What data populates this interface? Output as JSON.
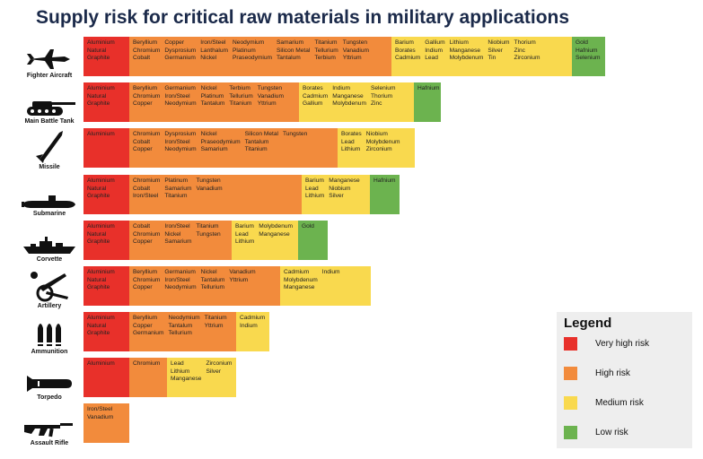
{
  "title": "Supply risk for critical raw materials in military applications",
  "legend": {
    "title": "Legend",
    "items": [
      {
        "label": "Very high risk",
        "color": "#e8302a"
      },
      {
        "label": "High risk",
        "color": "#f28b3c"
      },
      {
        "label": "Medium risk",
        "color": "#f9d94e"
      },
      {
        "label": "Low risk",
        "color": "#6cb34f"
      }
    ]
  },
  "chart_data": {
    "type": "table",
    "title": "Supply risk for critical raw materials in military applications",
    "risk_levels": [
      "Very high risk",
      "High risk",
      "Medium risk",
      "Low risk"
    ],
    "rows": [
      {
        "platform": "Fighter Aircraft",
        "icon": "fighter-jet-icon",
        "very_high": [
          "Aluminium",
          "Natural Graphite"
        ],
        "high": [
          "Beryllium",
          "Chromium",
          "Cobalt",
          "Copper",
          "Dysprosium",
          "Germanium",
          "Iron/Steel",
          "Lanthalum",
          "Nickel",
          "Neodymium",
          "Platinum",
          "Praseodymium",
          "Samarium",
          "Silicon Metal",
          "Tantalum",
          "Titanium",
          "Tellurium",
          "Terbium",
          "Tungsten",
          "Vanadium",
          "Yttrium"
        ],
        "medium": [
          "Barium",
          "Borates",
          "Cadmium",
          "Gallium",
          "Indium",
          "Lead",
          "Lithium",
          "Manganese",
          "Molybdenum",
          "Niobium",
          "Silver",
          "Tin",
          "Thorium",
          "Zinc",
          "Zirconium"
        ],
        "low": [
          "Gold",
          "Hafnium",
          "Selenium"
        ]
      },
      {
        "platform": "Main Battle Tank",
        "icon": "tank-icon",
        "very_high": [
          "Aluminium",
          "Natural Graphite"
        ],
        "high": [
          "Beryllium",
          "Chromium",
          "Copper",
          "Germanium",
          "Iron/Steel",
          "Neodymium",
          "Nickel",
          "Platinum",
          "Tantalum",
          "Terbium",
          "Tellurium",
          "Titanium",
          "Tungsten",
          "Vanadium",
          "Yttrium"
        ],
        "medium": [
          "Borates",
          "Cadmium",
          "Gallium",
          "Indium",
          "Manganese",
          "Molybdenum",
          "Selenium",
          "Thorium",
          "Zinc"
        ],
        "low": [
          "Hafnium"
        ]
      },
      {
        "platform": "Missile",
        "icon": "missile-icon",
        "very_high": [
          "Aluminium"
        ],
        "high": [
          "Chromium",
          "Cobalt",
          "Copper",
          "Dysprosium",
          "Iron/Steel",
          "Neodymium",
          "Nickel",
          "Praseodymium",
          "Samarium",
          "Silicon Metal",
          "Tantalum",
          "Titanium",
          "Tungsten"
        ],
        "medium": [
          "Borates",
          "Lead",
          "Lithium",
          "Niobium",
          "Molybdenum",
          "Zirconium"
        ],
        "low": []
      },
      {
        "platform": "Submarine",
        "icon": "submarine-icon",
        "very_high": [
          "Aluminium",
          "Natural Graphite"
        ],
        "high": [
          "Chromium",
          "Cobalt",
          "Iron/Steel",
          "Platinum",
          "Samarium",
          "Titanium",
          "Tungsten",
          "Vanadium"
        ],
        "medium": [
          "Barium",
          "Lead",
          "Lithium",
          "Manganese",
          "Niobium",
          "Silver"
        ],
        "low": [
          "Hafnium"
        ]
      },
      {
        "platform": "Corvette",
        "icon": "corvette-icon",
        "very_high": [
          "Aluminium",
          "Natural Graphite"
        ],
        "high": [
          "Cobalt",
          "Chromium",
          "Copper",
          "Iron/Steel",
          "Nickel",
          "Samarium",
          "Titanium",
          "Tungsten"
        ],
        "medium": [
          "Barium",
          "Lead",
          "Lithium",
          "Molybdenum",
          "Manganese"
        ],
        "low": [
          "Gold"
        ]
      },
      {
        "platform": "Artillery",
        "icon": "artillery-icon",
        "very_high": [
          "Aluminium",
          "Natural Graphite"
        ],
        "high": [
          "Beryllium",
          "Chromium",
          "Copper",
          "Germanium",
          "Iron/Steel",
          "Neodymium",
          "Nickel",
          "Tantalum",
          "Tellurium",
          "Vanadium",
          "Yttrium"
        ],
        "medium": [
          "Cadmium",
          "Molybdenum",
          "Manganese",
          "Indium"
        ],
        "low": []
      },
      {
        "platform": "Ammunition",
        "icon": "ammunition-icon",
        "very_high": [
          "Aluminium",
          "Natural Graphite"
        ],
        "high": [
          "Beryllium",
          "Copper",
          "Germanium",
          "Neodymium",
          "Tantalum",
          "Tellurium",
          "Titanium",
          "Yttrium"
        ],
        "medium": [
          "Cadmium",
          "Indium"
        ],
        "low": []
      },
      {
        "platform": "Torpedo",
        "icon": "torpedo-icon",
        "very_high": [
          "Aluminium"
        ],
        "high": [
          "Chromium"
        ],
        "medium": [
          "Lead",
          "Lithium",
          "Manganese",
          "Zirconium",
          "Silver"
        ],
        "low": []
      },
      {
        "platform": "Assault Rifle",
        "icon": "rifle-icon",
        "very_high": [],
        "high": [
          "Iron/Steel",
          "Vanadium"
        ],
        "medium": [],
        "low": []
      }
    ]
  },
  "cells": [
    {
      "platform": "Fighter Aircraft",
      "icon": "fighter-jet-icon",
      "segments": [
        {
          "risk": "very_high",
          "columns": [
            [
              "Aluminium",
              "Natural",
              "Graphite"
            ]
          ]
        },
        {
          "risk": "high",
          "columns": [
            [
              "Beryllium",
              "Chromium",
              "Cobalt"
            ],
            [
              "Copper",
              "Dysprosium",
              "Germanium"
            ],
            [
              "Iron/Steel",
              "Lanthalum",
              "Nickel"
            ],
            [
              "Neodymium",
              "Platinum",
              "Praseodymium"
            ],
            [
              "Samarium",
              "Silicon Metal",
              "Tantalum"
            ],
            [
              "Titanium",
              "Tellurium",
              "Terbium"
            ],
            [
              "Tungsten",
              "Vanadium",
              "Yttrium"
            ]
          ]
        },
        {
          "risk": "medium",
          "columns": [
            [
              "Barium",
              "Borates",
              "Cadmium"
            ],
            [
              "Gallium",
              "Indium",
              "Lead"
            ],
            [
              "Lithium",
              "Manganese",
              "Molybdenum"
            ],
            [
              "Niobium",
              "Silver",
              "Tin"
            ],
            [
              "Thorium",
              "Zinc",
              "Zirconium"
            ]
          ]
        },
        {
          "risk": "low",
          "columns": [
            [
              "Gold",
              "Hafnium",
              "Selenium"
            ]
          ]
        }
      ]
    },
    {
      "platform": "Main Battle Tank",
      "icon": "tank-icon",
      "segments": [
        {
          "risk": "very_high",
          "columns": [
            [
              "Aluminium",
              "Natural",
              "Graphite"
            ]
          ]
        },
        {
          "risk": "high",
          "columns": [
            [
              "Beryllium",
              "Chromium",
              "Copper"
            ],
            [
              "Germanium",
              "Iron/Steel",
              "Neodymium"
            ],
            [
              "Nickel",
              "Platinum",
              "Tantalum"
            ],
            [
              "Terbium",
              "Tellurium",
              "Titanium"
            ],
            [
              "Tungsten",
              "Vanadium",
              "Yttrium"
            ]
          ]
        },
        {
          "risk": "medium",
          "columns": [
            [
              "Borates",
              "Cadmium",
              "Gallium"
            ],
            [
              "Indium",
              "Manganese",
              "Molybdenum"
            ],
            [
              "Selenium",
              "Thorium",
              "Zinc"
            ]
          ]
        },
        {
          "risk": "low",
          "columns": [
            [
              "Hafnium"
            ]
          ]
        }
      ]
    },
    {
      "platform": "Missile",
      "icon": "missile-icon",
      "segments": [
        {
          "risk": "very_high",
          "columns": [
            [
              "Aluminium"
            ]
          ]
        },
        {
          "risk": "high",
          "columns": [
            [
              "Chromium",
              "Cobalt",
              "Copper"
            ],
            [
              "Dysprosium",
              "Iron/Steel",
              "Neodymium"
            ],
            [
              "Nickel",
              "Praseodymium",
              "Samarium"
            ],
            [
              "Silicon Metal",
              "Tantalum",
              "Titanium"
            ],
            [
              "Tungsten"
            ]
          ]
        },
        {
          "risk": "medium",
          "columns": [
            [
              "Borates",
              "Lead",
              "Lithium"
            ],
            [
              "Niobium",
              "Molybdenum",
              "Zirconium"
            ]
          ]
        }
      ]
    },
    {
      "platform": "Submarine",
      "icon": "submarine-icon",
      "segments": [
        {
          "risk": "very_high",
          "columns": [
            [
              "Aluminium",
              "Natural",
              "Graphite"
            ]
          ]
        },
        {
          "risk": "high",
          "columns": [
            [
              "Chromium",
              "Cobalt",
              "Iron/Steel"
            ],
            [
              "Platinum",
              "Samarium",
              "Titanium"
            ],
            [
              "Tungsten",
              "Vanadium"
            ]
          ]
        },
        {
          "risk": "medium",
          "columns": [
            [
              "Barium",
              "Lead",
              "Lithium"
            ],
            [
              "Manganese",
              "Niobium",
              "Silver"
            ]
          ]
        },
        {
          "risk": "low",
          "columns": [
            [
              "Hafnium"
            ]
          ]
        }
      ]
    },
    {
      "platform": "Corvette",
      "icon": "corvette-icon",
      "segments": [
        {
          "risk": "very_high",
          "columns": [
            [
              "Aluminium",
              "Natural",
              "Graphite"
            ]
          ]
        },
        {
          "risk": "high",
          "columns": [
            [
              "Cobalt",
              "Chromium",
              "Copper"
            ],
            [
              "Iron/Steel",
              "Nickel",
              "Samarium"
            ],
            [
              "Titanium",
              "Tungsten"
            ]
          ]
        },
        {
          "risk": "medium",
          "columns": [
            [
              "Barium",
              "Lead",
              "Lithium"
            ],
            [
              "Molybdenum",
              "Manganese"
            ]
          ]
        },
        {
          "risk": "low",
          "columns": [
            [
              "Gold"
            ]
          ]
        }
      ]
    },
    {
      "platform": "Artillery",
      "icon": "artillery-icon",
      "segments": [
        {
          "risk": "very_high",
          "columns": [
            [
              "Aluminium",
              "Natural",
              "Graphite"
            ]
          ]
        },
        {
          "risk": "high",
          "columns": [
            [
              "Beryllium",
              "Chromium",
              "Copper"
            ],
            [
              "Germanium",
              "Iron/Steel",
              "Neodymium"
            ],
            [
              "Nickel",
              "Tantalum",
              "Tellurium"
            ],
            [
              "Vanadium",
              "Yttrium"
            ]
          ]
        },
        {
          "risk": "medium",
          "columns": [
            [
              "Cadmium",
              "Molybdenum",
              "Manganese"
            ],
            [
              "Indium"
            ]
          ]
        }
      ]
    },
    {
      "platform": "Ammunition",
      "icon": "ammunition-icon",
      "segments": [
        {
          "risk": "very_high",
          "columns": [
            [
              "Aluminium",
              "Natural",
              "Graphite"
            ]
          ]
        },
        {
          "risk": "high",
          "columns": [
            [
              "Beryllium",
              "Copper",
              "Germanium"
            ],
            [
              "Neodymium",
              "Tantalum",
              "Tellurium"
            ],
            [
              "Titanium",
              "Yttrium"
            ]
          ]
        },
        {
          "risk": "medium",
          "columns": [
            [
              "Cadmium",
              "Indium"
            ]
          ]
        }
      ]
    },
    {
      "platform": "Torpedo",
      "icon": "torpedo-icon",
      "segments": [
        {
          "risk": "very_high",
          "columns": [
            [
              "Aluminium"
            ]
          ]
        },
        {
          "risk": "high",
          "columns": [
            [
              "Chromium"
            ]
          ]
        },
        {
          "risk": "medium",
          "columns": [
            [
              "Lead",
              "Lithium",
              "Manganese"
            ],
            [
              "Zirconium",
              "Silver"
            ]
          ]
        }
      ]
    },
    {
      "platform": "Assault Rifle",
      "icon": "rifle-icon",
      "segments": [
        {
          "risk": "high",
          "columns": [
            [
              "Iron/Steel",
              "Vanadium"
            ]
          ]
        }
      ]
    }
  ],
  "risk_colors": {
    "very_high": "#e8302a",
    "high": "#f28b3c",
    "medium": "#f9d94e",
    "low": "#6cb34f"
  }
}
